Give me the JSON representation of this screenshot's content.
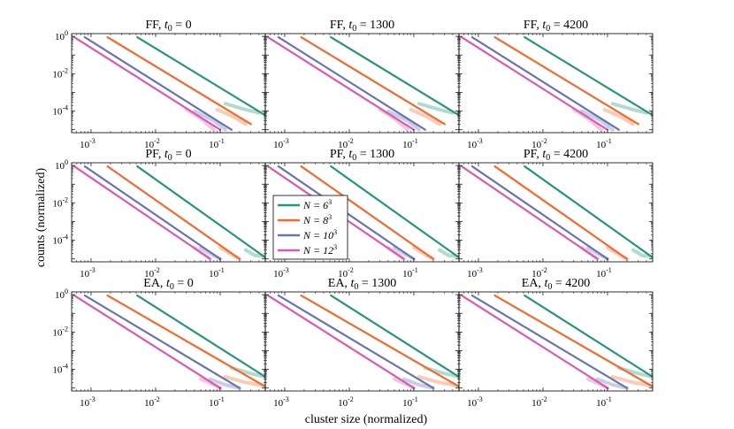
{
  "figure": {
    "ylabel": "counts (normalized)",
    "xlabel": "cluster size (normalized)"
  },
  "colors": {
    "N=6^3": "#26957a",
    "N=8^3": "#f06a2d",
    "N=10^3": "#6674b4",
    "N=12^3": "#d95ab0"
  },
  "legend": {
    "entries": [
      {
        "base": "N = 6",
        "exp": "3",
        "key": "N=6^3"
      },
      {
        "base": "N = 8",
        "exp": "3",
        "key": "N=8^3"
      },
      {
        "base": "N = 10",
        "exp": "3",
        "key": "N=10^3"
      },
      {
        "base": "N = 12",
        "exp": "3",
        "key": "N=12^3"
      }
    ]
  },
  "axes": {
    "x_ticks": [
      {
        "base": "10",
        "exp": "-3",
        "value": 0.001
      },
      {
        "base": "10",
        "exp": "-2",
        "value": 0.01
      },
      {
        "base": "10",
        "exp": "-1",
        "value": 0.1
      }
    ],
    "y_ticks": [
      {
        "base": "10",
        "exp": "0",
        "value": 1
      },
      {
        "base": "10",
        "exp": "-2",
        "value": 0.01
      },
      {
        "base": "10",
        "exp": "-4",
        "value": 0.0001
      }
    ],
    "xlim": [
      0.0005,
      0.5
    ],
    "ylim": [
      7e-06,
      1.4
    ]
  },
  "chart_data": [
    {
      "type": "line",
      "title": {
        "prefix": "FF, ",
        "var": "t",
        "sub": "0",
        "value": " = 0"
      },
      "row": 0,
      "col": 0,
      "series": [
        {
          "name": "N=6^3",
          "x": [
            0.0052,
            0.5
          ],
          "y": [
            0.9,
            6e-05
          ],
          "tail": [
            [
              0.12,
              0.00025
            ],
            [
              0.25,
              0.00012
            ],
            [
              0.4,
              8e-05
            ]
          ]
        },
        {
          "name": "N=8^3",
          "x": [
            0.0018,
            0.3
          ],
          "y": [
            0.9,
            2e-05
          ],
          "tail": [
            [
              0.09,
              0.00012
            ],
            [
              0.16,
              5e-05
            ],
            [
              0.25,
              2e-05
            ]
          ]
        },
        {
          "name": "N=10^3",
          "x": [
            0.0008,
            0.15
          ],
          "y": [
            0.9,
            1e-05
          ],
          "tail": [
            [
              0.04,
              0.0001
            ],
            [
              0.08,
              3e-05
            ],
            [
              0.12,
              1e-05
            ]
          ]
        },
        {
          "name": "N=12^3",
          "x": [
            0.00055,
            0.1
          ],
          "y": [
            0.9,
            1e-05
          ],
          "tail": [
            [
              0.03,
              0.00012
            ],
            [
              0.05,
              4e-05
            ],
            [
              0.08,
              1e-05
            ]
          ]
        }
      ]
    },
    {
      "type": "line",
      "title": {
        "prefix": "FF, ",
        "var": "t",
        "sub": "0",
        "value": " = 1300"
      },
      "row": 0,
      "col": 1,
      "series": [
        {
          "name": "N=6^3",
          "x": [
            0.0052,
            0.5
          ],
          "y": [
            0.9,
            6e-05
          ],
          "tail": [
            [
              0.12,
              0.00025
            ],
            [
              0.25,
              0.00012
            ],
            [
              0.4,
              8e-05
            ]
          ]
        },
        {
          "name": "N=8^3",
          "x": [
            0.0018,
            0.3
          ],
          "y": [
            0.9,
            2e-05
          ],
          "tail": [
            [
              0.09,
              0.00012
            ],
            [
              0.16,
              5e-05
            ],
            [
              0.25,
              2e-05
            ]
          ]
        },
        {
          "name": "N=10^3",
          "x": [
            0.0008,
            0.15
          ],
          "y": [
            0.9,
            1e-05
          ],
          "tail": [
            [
              0.04,
              0.0001
            ],
            [
              0.08,
              3e-05
            ],
            [
              0.12,
              1e-05
            ]
          ]
        },
        {
          "name": "N=12^3",
          "x": [
            0.00055,
            0.1
          ],
          "y": [
            0.9,
            1e-05
          ],
          "tail": [
            [
              0.03,
              0.00012
            ],
            [
              0.05,
              4e-05
            ],
            [
              0.08,
              1e-05
            ]
          ]
        }
      ]
    },
    {
      "type": "line",
      "title": {
        "prefix": "FF, ",
        "var": "t",
        "sub": "0",
        "value": " = 4200"
      },
      "row": 0,
      "col": 2,
      "series": [
        {
          "name": "N=6^3",
          "x": [
            0.0052,
            0.5
          ],
          "y": [
            0.9,
            6e-05
          ],
          "tail": [
            [
              0.12,
              0.00025
            ],
            [
              0.25,
              0.00012
            ],
            [
              0.4,
              8e-05
            ]
          ]
        },
        {
          "name": "N=8^3",
          "x": [
            0.0018,
            0.3
          ],
          "y": [
            0.9,
            2e-05
          ],
          "tail": [
            [
              0.09,
              0.00012
            ],
            [
              0.16,
              5e-05
            ],
            [
              0.25,
              2e-05
            ]
          ]
        },
        {
          "name": "N=10^3",
          "x": [
            0.0008,
            0.15
          ],
          "y": [
            0.9,
            1e-05
          ],
          "tail": [
            [
              0.04,
              0.0001
            ],
            [
              0.08,
              3e-05
            ],
            [
              0.12,
              1e-05
            ]
          ]
        },
        {
          "name": "N=12^3",
          "x": [
            0.00055,
            0.1
          ],
          "y": [
            0.9,
            1e-05
          ],
          "tail": [
            [
              0.03,
              0.00012
            ],
            [
              0.05,
              4e-05
            ],
            [
              0.08,
              1e-05
            ]
          ]
        }
      ]
    },
    {
      "type": "line",
      "title": {
        "prefix": "PF, ",
        "var": "t",
        "sub": "0",
        "value": " = 0"
      },
      "row": 1,
      "col": 0,
      "series": [
        {
          "name": "N=6^3",
          "x": [
            0.0052,
            0.5
          ],
          "y": [
            0.9,
            1.2e-05
          ],
          "tail": [
            [
              0.25,
              3e-05
            ],
            [
              0.35,
              1.5e-05
            ],
            [
              0.5,
              1.4e-05
            ]
          ]
        },
        {
          "name": "N=8^3",
          "x": [
            0.0018,
            0.2
          ],
          "y": [
            0.9,
            1e-05
          ],
          "tail": [
            [
              0.1,
              4e-05
            ],
            [
              0.16,
              1.5e-05
            ],
            [
              0.2,
              1e-05
            ]
          ]
        },
        {
          "name": "N=10^3",
          "x": [
            0.0008,
            0.1
          ],
          "y": [
            0.9,
            1e-05
          ],
          "tail": [
            [
              0.05,
              4e-05
            ],
            [
              0.08,
              1.5e-05
            ],
            [
              0.1,
              1e-05
            ]
          ]
        },
        {
          "name": "N=12^3",
          "x": [
            0.00055,
            0.07
          ],
          "y": [
            0.9,
            1e-05
          ],
          "tail": [
            [
              0.04,
              4e-05
            ],
            [
              0.06,
              1.5e-05
            ],
            [
              0.07,
              1e-05
            ]
          ]
        }
      ]
    },
    {
      "type": "line",
      "title": {
        "prefix": "PF, ",
        "var": "t",
        "sub": "0",
        "value": " = 1300"
      },
      "row": 1,
      "col": 1,
      "series": [
        {
          "name": "N=6^3",
          "x": [
            0.0052,
            0.5
          ],
          "y": [
            0.9,
            1.2e-05
          ],
          "tail": [
            [
              0.25,
              3e-05
            ],
            [
              0.35,
              1.5e-05
            ],
            [
              0.5,
              1.4e-05
            ]
          ]
        },
        {
          "name": "N=8^3",
          "x": [
            0.0018,
            0.2
          ],
          "y": [
            0.9,
            1e-05
          ],
          "tail": [
            [
              0.1,
              4e-05
            ],
            [
              0.16,
              1.5e-05
            ],
            [
              0.2,
              1e-05
            ]
          ]
        },
        {
          "name": "N=10^3",
          "x": [
            0.0008,
            0.1
          ],
          "y": [
            0.9,
            1e-05
          ],
          "tail": [
            [
              0.05,
              4e-05
            ],
            [
              0.08,
              1.5e-05
            ],
            [
              0.1,
              1e-05
            ]
          ]
        },
        {
          "name": "N=12^3",
          "x": [
            0.00055,
            0.07
          ],
          "y": [
            0.9,
            1e-05
          ],
          "tail": [
            [
              0.04,
              4e-05
            ],
            [
              0.06,
              1.5e-05
            ],
            [
              0.07,
              1e-05
            ]
          ]
        }
      ]
    },
    {
      "type": "line",
      "title": {
        "prefix": "PF, ",
        "var": "t",
        "sub": "0",
        "value": " = 4200"
      },
      "row": 1,
      "col": 2,
      "series": [
        {
          "name": "N=6^3",
          "x": [
            0.0052,
            0.5
          ],
          "y": [
            0.9,
            1.2e-05
          ],
          "tail": [
            [
              0.25,
              3e-05
            ],
            [
              0.35,
              1.5e-05
            ],
            [
              0.5,
              1.4e-05
            ]
          ]
        },
        {
          "name": "N=8^3",
          "x": [
            0.0018,
            0.2
          ],
          "y": [
            0.9,
            1e-05
          ],
          "tail": [
            [
              0.1,
              4e-05
            ],
            [
              0.16,
              1.5e-05
            ],
            [
              0.2,
              1e-05
            ]
          ]
        },
        {
          "name": "N=10^3",
          "x": [
            0.0008,
            0.1
          ],
          "y": [
            0.9,
            1e-05
          ],
          "tail": [
            [
              0.05,
              4e-05
            ],
            [
              0.08,
              1.5e-05
            ],
            [
              0.1,
              1e-05
            ]
          ]
        },
        {
          "name": "N=12^3",
          "x": [
            0.00055,
            0.07
          ],
          "y": [
            0.9,
            1e-05
          ],
          "tail": [
            [
              0.04,
              4e-05
            ],
            [
              0.06,
              1.5e-05
            ],
            [
              0.07,
              1e-05
            ]
          ]
        }
      ]
    },
    {
      "type": "line",
      "title": {
        "prefix": "EA, ",
        "var": "t",
        "sub": "0",
        "value": " = 0"
      },
      "row": 2,
      "col": 0,
      "series": [
        {
          "name": "N=6^3",
          "x": [
            0.0052,
            0.5
          ],
          "y": [
            0.9,
            4e-05
          ],
          "tail": [
            [
              0.15,
              0.00012
            ],
            [
              0.3,
              6e-05
            ],
            [
              0.5,
              4e-05
            ]
          ]
        },
        {
          "name": "N=8^3",
          "x": [
            0.0018,
            0.5
          ],
          "y": [
            0.9,
            1.2e-05
          ],
          "tail": [
            [
              0.12,
              4e-05
            ],
            [
              0.25,
              2e-05
            ],
            [
              0.5,
              1.3e-05
            ]
          ]
        },
        {
          "name": "N=10^3",
          "x": [
            0.0008,
            0.2
          ],
          "y": [
            0.9,
            1e-05
          ],
          "tail": [
            [
              0.07,
              3e-05
            ],
            [
              0.12,
              1.5e-05
            ],
            [
              0.2,
              1e-05
            ]
          ]
        },
        {
          "name": "N=12^3",
          "x": [
            0.00055,
            0.1
          ],
          "y": [
            0.9,
            1e-05
          ],
          "tail": [
            [
              0.05,
              3e-05
            ],
            [
              0.08,
              1.5e-05
            ],
            [
              0.1,
              1e-05
            ]
          ]
        }
      ]
    },
    {
      "type": "line",
      "title": {
        "prefix": "EA, ",
        "var": "t",
        "sub": "0",
        "value": " = 1300"
      },
      "row": 2,
      "col": 1,
      "series": [
        {
          "name": "N=6^3",
          "x": [
            0.0052,
            0.5
          ],
          "y": [
            0.9,
            4e-05
          ],
          "tail": [
            [
              0.15,
              0.00012
            ],
            [
              0.3,
              6e-05
            ],
            [
              0.5,
              4e-05
            ]
          ]
        },
        {
          "name": "N=8^3",
          "x": [
            0.0018,
            0.5
          ],
          "y": [
            0.9,
            1.2e-05
          ],
          "tail": [
            [
              0.12,
              4e-05
            ],
            [
              0.25,
              2e-05
            ],
            [
              0.5,
              1.3e-05
            ]
          ]
        },
        {
          "name": "N=10^3",
          "x": [
            0.0008,
            0.2
          ],
          "y": [
            0.9,
            1e-05
          ],
          "tail": [
            [
              0.07,
              3e-05
            ],
            [
              0.12,
              1.5e-05
            ],
            [
              0.2,
              1e-05
            ]
          ]
        },
        {
          "name": "N=12^3",
          "x": [
            0.00055,
            0.1
          ],
          "y": [
            0.9,
            1e-05
          ],
          "tail": [
            [
              0.05,
              3e-05
            ],
            [
              0.08,
              1.5e-05
            ],
            [
              0.1,
              1e-05
            ]
          ]
        }
      ]
    },
    {
      "type": "line",
      "title": {
        "prefix": "EA, ",
        "var": "t",
        "sub": "0",
        "value": " = 4200"
      },
      "row": 2,
      "col": 2,
      "series": [
        {
          "name": "N=6^3",
          "x": [
            0.0052,
            0.5
          ],
          "y": [
            0.9,
            4e-05
          ],
          "tail": [
            [
              0.15,
              0.00012
            ],
            [
              0.3,
              6e-05
            ],
            [
              0.5,
              4e-05
            ]
          ]
        },
        {
          "name": "N=8^3",
          "x": [
            0.0018,
            0.5
          ],
          "y": [
            0.9,
            1.2e-05
          ],
          "tail": [
            [
              0.12,
              4e-05
            ],
            [
              0.25,
              2e-05
            ],
            [
              0.5,
              1.3e-05
            ]
          ]
        },
        {
          "name": "N=10^3",
          "x": [
            0.0008,
            0.2
          ],
          "y": [
            0.9,
            1e-05
          ],
          "tail": [
            [
              0.07,
              3e-05
            ],
            [
              0.12,
              1.5e-05
            ],
            [
              0.2,
              1e-05
            ]
          ]
        },
        {
          "name": "N=12^3",
          "x": [
            0.00055,
            0.1
          ],
          "y": [
            0.9,
            1e-05
          ],
          "tail": [
            [
              0.05,
              3e-05
            ],
            [
              0.08,
              1.5e-05
            ],
            [
              0.1,
              1e-05
            ]
          ]
        }
      ]
    }
  ]
}
